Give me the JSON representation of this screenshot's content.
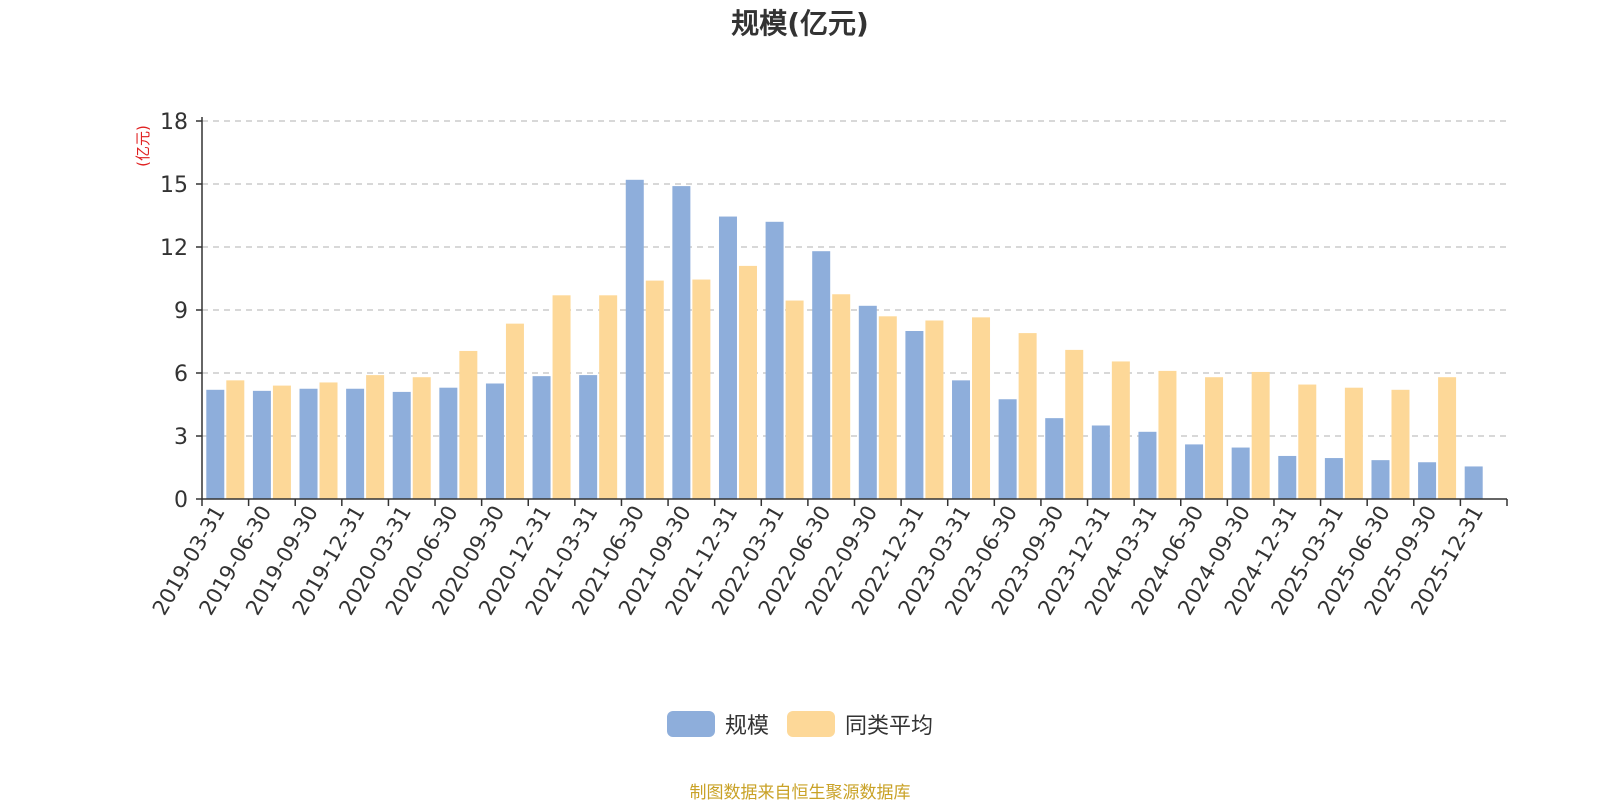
{
  "chart_data": {
    "type": "bar",
    "title": "规模(亿元)",
    "ylabel": "(亿元)",
    "ylim": [
      0,
      18
    ],
    "yticks": [
      0,
      3,
      6,
      9,
      12,
      15,
      18
    ],
    "grid": true,
    "legend_position": "bottom",
    "categories": [
      "2019-03-31",
      "2019-06-30",
      "2019-09-30",
      "2019-12-31",
      "2020-03-31",
      "2020-06-30",
      "2020-09-30",
      "2020-12-31",
      "2021-03-31",
      "2021-06-30",
      "2021-09-30",
      "2021-12-31",
      "2022-03-31",
      "2022-06-30",
      "2022-09-30",
      "2022-12-31",
      "2023-03-31",
      "2023-06-30",
      "2023-09-30",
      "2023-12-31",
      "2024-03-31",
      "2024-06-30",
      "2024-09-30",
      "2024-12-31",
      "2025-03-31",
      "2025-06-30",
      "2025-09-30",
      "2025-12-31"
    ],
    "series": [
      {
        "name": "规模",
        "color": "#8eaedb",
        "values": [
          5.2,
          5.15,
          5.25,
          5.25,
          5.1,
          5.3,
          5.5,
          5.85,
          5.9,
          15.2,
          14.9,
          13.45,
          13.2,
          11.8,
          9.2,
          8.0,
          5.65,
          4.75,
          3.85,
          3.5,
          3.2,
          2.6,
          2.45,
          2.05,
          1.95,
          1.85,
          1.75,
          1.55
        ]
      },
      {
        "name": "同类平均",
        "color": "#fdd898",
        "values": [
          5.65,
          5.4,
          5.55,
          5.9,
          5.8,
          7.05,
          8.35,
          9.7,
          9.7,
          10.4,
          10.45,
          11.1,
          9.45,
          9.75,
          8.7,
          8.5,
          8.65,
          7.9,
          7.1,
          6.55,
          6.1,
          5.8,
          6.05,
          5.45,
          5.3,
          5.2,
          5.8,
          null
        ]
      }
    ]
  },
  "source_note": "制图数据来自恒生聚源数据库"
}
